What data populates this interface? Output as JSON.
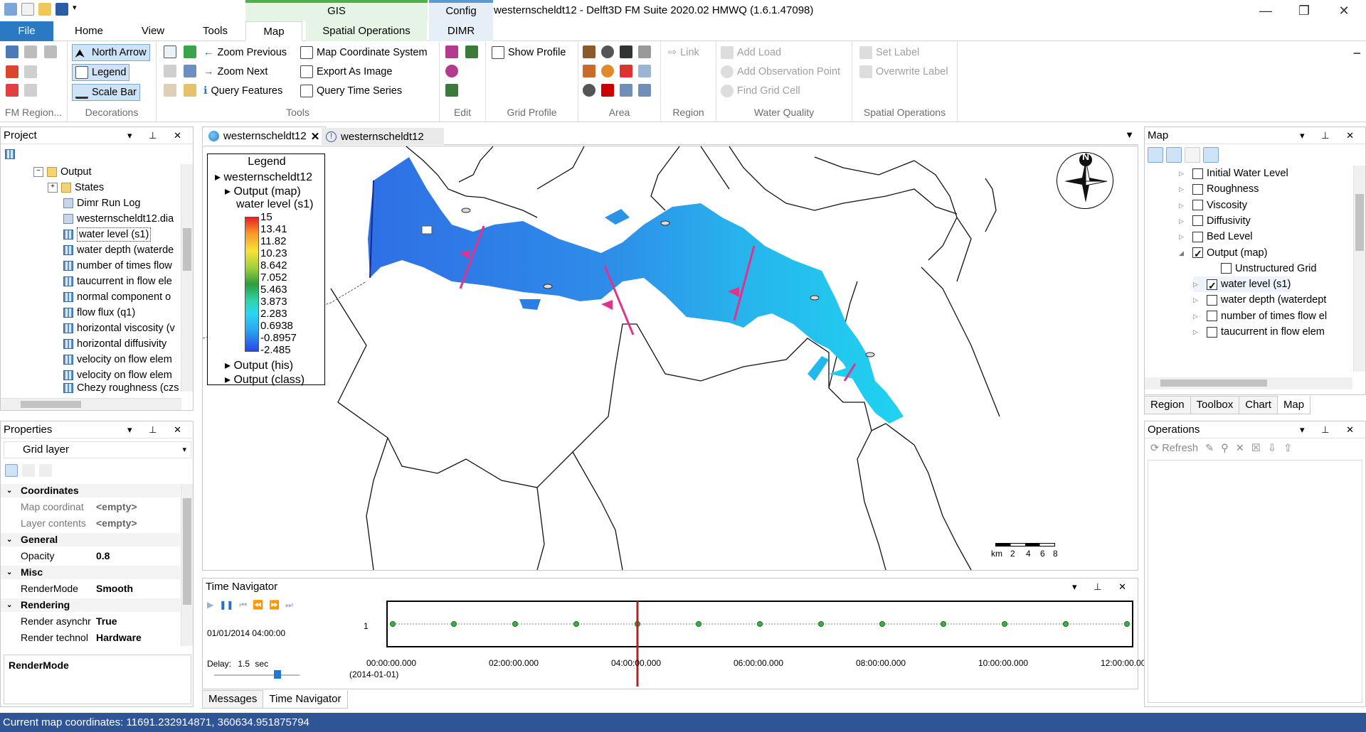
{
  "app": {
    "title": "westernscheldt12 - Delft3D FM Suite 2020.02 HMWQ (1.6.1.47098)",
    "contexts": {
      "gis": "GIS",
      "config": "Config"
    }
  },
  "tabs": [
    "File",
    "Home",
    "View",
    "Tools",
    "Map",
    "Spatial Operations",
    "DIMR"
  ],
  "ribbon": {
    "decorations": {
      "north_arrow": "North Arrow",
      "legend": "Legend",
      "scale_bar": "Scale Bar",
      "label": "Decorations"
    },
    "fm_region": {
      "label": "FM Region..."
    },
    "tools": {
      "zoom_previous": "Zoom Previous",
      "zoom_next": "Zoom Next",
      "query_features": "Query Features",
      "map_coord_system": "Map Coordinate System",
      "export_image": "Export As Image",
      "query_time_series": "Query Time Series",
      "label": "Tools"
    },
    "edit": {
      "label": "Edit"
    },
    "grid_profile": {
      "show_profile": "Show Profile",
      "label": "Grid Profile"
    },
    "area": {
      "label": "Area"
    },
    "region": {
      "link": "Link",
      "label": "Region"
    },
    "water_quality": {
      "add_load": "Add Load",
      "add_obs": "Add Observation Point",
      "find_cell": "Find Grid Cell",
      "label": "Water Quality"
    },
    "spatial_ops": {
      "set_label": "Set Label",
      "overwrite_label": "Overwrite Label",
      "label": "Spatial Operations"
    }
  },
  "project": {
    "title": "Project",
    "items": [
      "Output",
      "States",
      "Dimr Run Log",
      "westernscheldt12.dia",
      "water level (s1)",
      "water depth (waterde",
      "number of times flow",
      "taucurrent in flow ele",
      "normal component o",
      "flow flux (q1)",
      "horizontal viscosity (v",
      "horizontal diffusivity",
      "velocity on flow elem",
      "velocity on flow elem",
      "Chezy roughness (czs"
    ]
  },
  "properties": {
    "title": "Properties",
    "selector": "Grid layer",
    "rows": [
      {
        "k": "Coordinates",
        "cat": true
      },
      {
        "k": "Map coordinat",
        "v": "<empty>"
      },
      {
        "k": "Layer contents",
        "v": "<empty>"
      },
      {
        "k": "General",
        "cat": true
      },
      {
        "k": "Opacity",
        "v": "0.8"
      },
      {
        "k": "Misc",
        "cat": true
      },
      {
        "k": "RenderMode",
        "v": "Smooth"
      },
      {
        "k": "Rendering",
        "cat": true
      },
      {
        "k": "Render asynchr",
        "v": "True"
      },
      {
        "k": "Render technol",
        "v": "Hardware"
      }
    ],
    "description": "RenderMode"
  },
  "doc_tabs": [
    "westernscheldt12",
    "westernscheldt12"
  ],
  "legend": {
    "title": "Legend",
    "model": "westernscheldt12",
    "output_map": "Output (map)",
    "layer": "water level (s1)",
    "values": [
      "15",
      "13.41",
      "11.82",
      "10.23",
      "8.642",
      "7.052",
      "5.463",
      "3.873",
      "2.283",
      "0.6938",
      "-0.8957",
      "-2.485"
    ],
    "output_his": "Output (his)",
    "output_class": "Output (class)"
  },
  "scale": {
    "unit": "km",
    "ticks": [
      "2",
      "4",
      "6",
      "8"
    ]
  },
  "north": "N",
  "time_nav": {
    "title": "Time Navigator",
    "current": "01/01/2014 04:00:00",
    "delay_label": "Delay:",
    "delay_value": "1.5",
    "delay_unit": "sec",
    "y_label": "1",
    "ticks": [
      "00:00:00.000",
      "02:00:00.000",
      "04:00:00.000",
      "06:00:00.000",
      "08:00:00.000",
      "10:00:00.000",
      "12:00:00.000"
    ],
    "date": "(2014-01-01)",
    "current_hour": 4,
    "max_hour": 12
  },
  "bottom_tabs": [
    "Messages",
    "Time Navigator"
  ],
  "map_panel": {
    "title": "Map",
    "layers": [
      {
        "name": "Initial Water Level",
        "checked": false
      },
      {
        "name": "Roughness",
        "checked": false
      },
      {
        "name": "Viscosity",
        "checked": false
      },
      {
        "name": "Diffusivity",
        "checked": false
      },
      {
        "name": "Bed Level",
        "checked": false
      },
      {
        "name": "Output (map)",
        "checked": true
      },
      {
        "name": "Unstructured Grid",
        "checked": false
      },
      {
        "name": "water level (s1)",
        "checked": true
      },
      {
        "name": "water depth (waterdept",
        "checked": false
      },
      {
        "name": "number of times flow el",
        "checked": false
      },
      {
        "name": "taucurrent in flow elem",
        "checked": false
      }
    ],
    "tabs": [
      "Region",
      "Toolbox",
      "Chart",
      "Map"
    ]
  },
  "operations": {
    "title": "Operations",
    "refresh": "Refresh"
  },
  "status": "Current map coordinates: 11691.232914871, 360634.951875794",
  "colors": {
    "file_tab": "#2b79c2",
    "status_bar": "#2f5597",
    "time_cursor": "#b22222"
  }
}
